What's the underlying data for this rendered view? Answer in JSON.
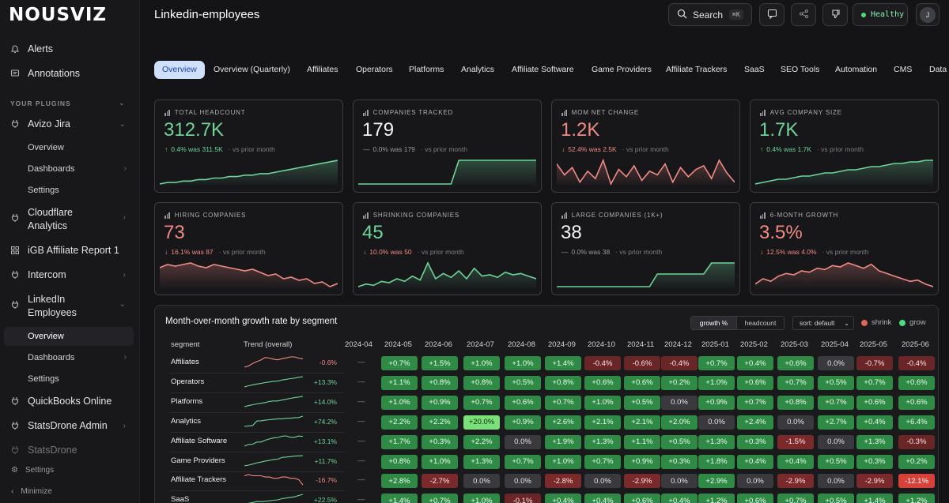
{
  "app": {
    "logo": "NOUSVIZ",
    "page_title": "Linkedin-employees"
  },
  "sidebar": {
    "top_items": [
      {
        "label": "Alerts",
        "icon": "bell-icon"
      },
      {
        "label": "Annotations",
        "icon": "message-icon"
      }
    ],
    "section_label": "YOUR PLUGINS",
    "plugins": [
      {
        "label": "Avizo Jira",
        "icon": "plug-icon"
      },
      {
        "label": "Cloudflare Analytics",
        "icon": "plug-icon"
      },
      {
        "label": "iGB Affiliate Report 1",
        "icon": "grid-icon"
      },
      {
        "label": "Intercom",
        "icon": "plug-icon"
      },
      {
        "label": "LinkedIn Employees",
        "icon": "plug-icon"
      },
      {
        "label": "QuickBooks Online",
        "icon": "plug-icon"
      },
      {
        "label": "StatsDrone Admin",
        "icon": "plug-icon"
      },
      {
        "label": "StatsDrone",
        "icon": "plug-icon"
      }
    ],
    "avizo_sub": [
      "Overview",
      "Dashboards",
      "Settings"
    ],
    "linkedin_sub": [
      "Overview",
      "Dashboards",
      "Settings"
    ],
    "bottom": {
      "settings": "Settings",
      "minimize": "Minimize"
    }
  },
  "topbar": {
    "search_label": "Search",
    "search_kbd": "⌘K",
    "status": "Healthy",
    "avatar_initial": "J"
  },
  "tabs": [
    "Overview",
    "Overview (Quarterly)",
    "Affiliates",
    "Operators",
    "Platforms",
    "Analytics",
    "Affiliate Software",
    "Game Providers",
    "Affiliate Trackers",
    "SaaS",
    "SEO Tools",
    "Automation",
    "CMS",
    "Data V"
  ],
  "kpis": [
    {
      "label": "TOTAL HEADCOUNT",
      "value": "312.7K",
      "change": "0.4% was 311.5K",
      "vs": "· vs prior month",
      "trend": "up",
      "color": "#6fd49a",
      "spark": [
        10,
        11,
        11,
        12,
        12,
        13,
        13,
        14,
        14,
        15,
        15,
        16,
        16,
        17,
        17,
        18,
        19,
        20,
        21,
        22,
        23,
        24,
        25,
        26
      ]
    },
    {
      "label": "COMPANIES TRACKED",
      "value": "179",
      "change": "0.0% was 179",
      "vs": "· vs prior month",
      "trend": "flat",
      "color": "#6fd49a",
      "spark": [
        5,
        5,
        5,
        5,
        5,
        5,
        5,
        5,
        5,
        5,
        5,
        5,
        5,
        22,
        22,
        22,
        22,
        22,
        22,
        22,
        22,
        22,
        22,
        22
      ]
    },
    {
      "label": "MOM NET CHANGE",
      "value": "1.2K",
      "change": "52.4% was 2.5K",
      "vs": "· vs prior month",
      "trend": "down",
      "color": "#f08a84",
      "spark": [
        20,
        14,
        18,
        10,
        16,
        12,
        22,
        9,
        17,
        13,
        19,
        11,
        16,
        14,
        20,
        10,
        18,
        13,
        17,
        19,
        12,
        22,
        15,
        10
      ]
    },
    {
      "label": "AVG COMPANY SIZE",
      "value": "1.7K",
      "change": "0.4% was 1.7K",
      "vs": "· vs prior month",
      "trend": "up",
      "color": "#6fd49a",
      "spark": [
        8,
        9,
        10,
        11,
        11,
        12,
        13,
        13,
        14,
        15,
        15,
        16,
        17,
        17,
        18,
        19,
        19,
        20,
        21,
        21,
        22,
        22,
        23,
        23
      ]
    },
    {
      "label": "HIRING COMPANIES",
      "value": "73",
      "change": "16.1% was 87",
      "vs": "· vs prior month",
      "trend": "down",
      "color": "#f08a84",
      "spark": [
        22,
        24,
        23,
        24,
        25,
        23,
        22,
        24,
        23,
        22,
        21,
        20,
        21,
        19,
        17,
        18,
        15,
        16,
        14,
        15,
        12,
        13,
        10,
        12
      ]
    },
    {
      "label": "SHRINKING COMPANIES",
      "value": "45",
      "change": "10.0% was 50",
      "vs": "· vs prior month",
      "trend": "down",
      "color": "#6fd49a",
      "spark": [
        6,
        8,
        7,
        10,
        9,
        12,
        10,
        14,
        11,
        24,
        12,
        16,
        13,
        18,
        12,
        20,
        14,
        15,
        13,
        17,
        15,
        16,
        14,
        12
      ]
    },
    {
      "label": "LARGE COMPANIES (1K+)",
      "value": "38",
      "change": "0.0% was 38",
      "vs": "· vs prior month",
      "trend": "flat",
      "color": "#6fd49a",
      "spark": [
        8,
        8,
        8,
        8,
        8,
        8,
        8,
        8,
        8,
        8,
        8,
        8,
        8,
        16,
        16,
        16,
        16,
        16,
        16,
        16,
        23,
        23,
        23,
        23
      ]
    },
    {
      "label": "6-MONTH GROWTH",
      "value": "3.5%",
      "change": "12.5% was 4.0%",
      "vs": "· vs prior month",
      "trend": "down",
      "color": "#f08a84",
      "spark": [
        8,
        12,
        10,
        14,
        16,
        15,
        18,
        17,
        20,
        19,
        22,
        21,
        24,
        22,
        20,
        23,
        18,
        16,
        14,
        12,
        10,
        11,
        8,
        6
      ]
    }
  ],
  "heatmap": {
    "title": "Month-over-month growth rate by segment",
    "toggle": {
      "growth": "growth %",
      "headcount": "headcount"
    },
    "sort": "sort: default",
    "legend": {
      "shrink": "shrink",
      "grow": "grow",
      "shrink_color": "#e06658",
      "grow_color": "#4ade80"
    },
    "col_segment": "segment",
    "col_trend": "Trend (overall)",
    "months": [
      "2024-04",
      "2024-05",
      "2024-06",
      "2024-07",
      "2024-08",
      "2024-09",
      "2024-10",
      "2024-11",
      "2024-12",
      "2025-01",
      "2025-02",
      "2025-03",
      "2025-04",
      "2025-05",
      "2025-06"
    ],
    "rows": [
      {
        "name": "Affiliates",
        "total": "-0.6%",
        "cells": [
          "—",
          "+0.7%",
          "+1.5%",
          "+1.0%",
          "+1.0%",
          "+1.4%",
          "-0.4%",
          "-0.6%",
          "-0.4%",
          "+0.7%",
          "+0.4%",
          "+0.6%",
          "0.0%",
          "-0.7%",
          "-0.4%"
        ]
      },
      {
        "name": "Operators",
        "total": "+13.3%",
        "cells": [
          "—",
          "+1.1%",
          "+0.8%",
          "+0.8%",
          "+0.5%",
          "+0.8%",
          "+0.6%",
          "+0.6%",
          "+0.2%",
          "+1.0%",
          "+0.6%",
          "+0.7%",
          "+0.5%",
          "+0.7%",
          "+0.6%"
        ]
      },
      {
        "name": "Platforms",
        "total": "+14.0%",
        "cells": [
          "—",
          "+1.0%",
          "+0.9%",
          "+0.7%",
          "+0.6%",
          "+0.7%",
          "+1.0%",
          "+0.5%",
          "0.0%",
          "+0.9%",
          "+0.7%",
          "+0.8%",
          "+0.7%",
          "+0.6%",
          "+0.6%"
        ]
      },
      {
        "name": "Analytics",
        "total": "+74.2%",
        "cells": [
          "—",
          "+2.2%",
          "+2.2%",
          "+20.0%",
          "+0.9%",
          "+2.6%",
          "+2.1%",
          "+2.1%",
          "+2.0%",
          "0.0%",
          "+2.4%",
          "0.0%",
          "+2.7%",
          "+0.4%",
          "+6.4%"
        ]
      },
      {
        "name": "Affiliate Software",
        "total": "+13.1%",
        "cells": [
          "—",
          "+1.7%",
          "+0.3%",
          "+2.2%",
          "0.0%",
          "+1.9%",
          "+1.3%",
          "+1.1%",
          "+0.5%",
          "+1.3%",
          "+0.3%",
          "-1.5%",
          "0.0%",
          "+1.3%",
          "-0.3%"
        ]
      },
      {
        "name": "Game Providers",
        "total": "+11.7%",
        "cells": [
          "—",
          "+0.8%",
          "+1.0%",
          "+1.3%",
          "+0.7%",
          "+1.0%",
          "+0.7%",
          "+0.9%",
          "+0.3%",
          "+1.8%",
          "+0.4%",
          "+0.4%",
          "+0.5%",
          "+0.3%",
          "+0.2%"
        ]
      },
      {
        "name": "Affiliate Trackers",
        "total": "-16.7%",
        "cells": [
          "—",
          "+2.8%",
          "-2.7%",
          "0.0%",
          "0.0%",
          "-2.8%",
          "0.0%",
          "-2.9%",
          "0.0%",
          "+2.9%",
          "0.0%",
          "-2.9%",
          "0.0%",
          "-2.9%",
          "-12.1%"
        ]
      },
      {
        "name": "SaaS",
        "total": "+22.5%",
        "cells": [
          "—",
          "+1.4%",
          "+0.7%",
          "+1.0%",
          "-0.1%",
          "+0.4%",
          "+0.4%",
          "+0.6%",
          "+0.4%",
          "+1.2%",
          "+0.6%",
          "+0.7%",
          "+0.5%",
          "+1.4%",
          "+1.2%"
        ]
      }
    ]
  }
}
